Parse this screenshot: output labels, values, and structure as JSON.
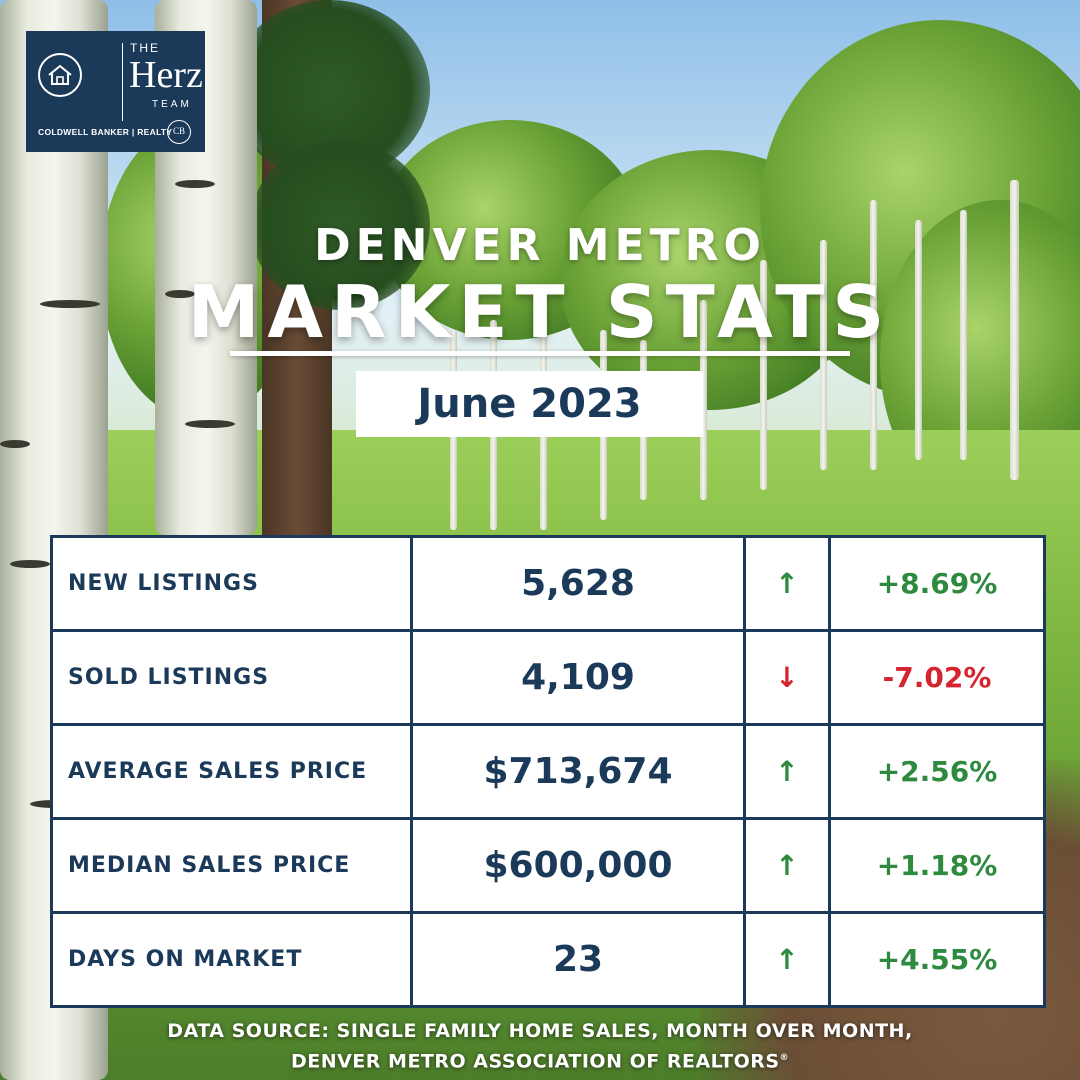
{
  "logo": {
    "the": "THE",
    "name": "Herz",
    "team": "TEAM",
    "broker": "COLDWELL BANKER | REALTY",
    "seal": "CB"
  },
  "header": {
    "subtitle": "DENVER METRO",
    "title": "MARKET STATS",
    "date": "June 2023"
  },
  "colors": {
    "navy": "#1b3a5a",
    "up": "#2e8a3e",
    "down": "#d5232f"
  },
  "stats": [
    {
      "label": "NEW LISTINGS",
      "value": "5,628",
      "arrow": "↑",
      "direction": "up",
      "change": "+8.69%"
    },
    {
      "label": "SOLD LISTINGS",
      "value": "4,109",
      "arrow": "↓",
      "direction": "down",
      "change": "-7.02%"
    },
    {
      "label": "AVERAGE SALES PRICE",
      "value": "$713,674",
      "arrow": "↑",
      "direction": "up",
      "change": "+2.56%"
    },
    {
      "label": "MEDIAN SALES PRICE",
      "value": "$600,000",
      "arrow": "↑",
      "direction": "up",
      "change": "+1.18%"
    },
    {
      "label": "DAYS ON MARKET",
      "value": "23",
      "arrow": "↑",
      "direction": "up",
      "change": "+4.55%"
    }
  ],
  "footer": {
    "line1": "DATA SOURCE: SINGLE FAMILY HOME SALES, MONTH OVER MONTH,",
    "line2": "DENVER METRO ASSOCIATION OF REALTORS",
    "mark": "®"
  }
}
